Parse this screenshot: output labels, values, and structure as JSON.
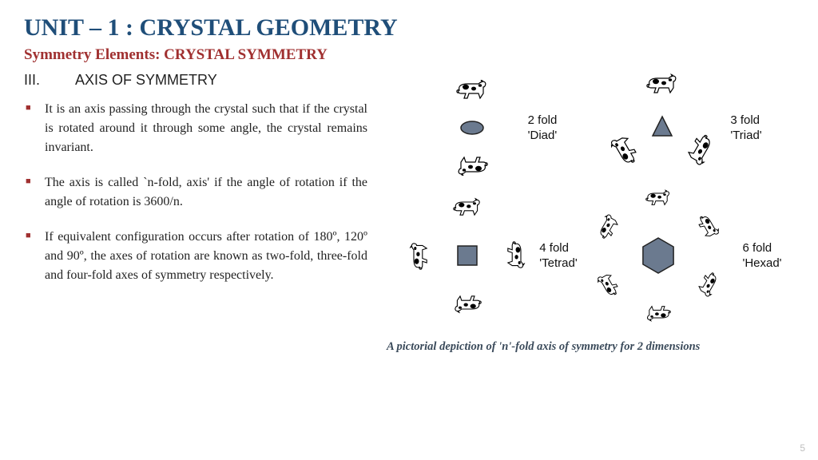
{
  "title": "UNIT – 1 : CRYSTAL GEOMETRY",
  "subtitle": "Symmetry Elements: CRYSTAL SYMMETRY",
  "section_roman": "III.",
  "section_name": "AXIS OF SYMMETRY",
  "bullets": [
    "It is an axis passing through the crystal such that if the crystal is rotated around it through some angle, the crystal remains invariant.",
    "The axis is called `n-fold, axis' if the angle of rotation if the angle of rotation is 3600/n.",
    "If equivalent configuration occurs after rotation of 180º, 120º and 90º, the axes of rotation are known as two-fold, three-fold and four-fold axes of symmetry respectively."
  ],
  "panels": {
    "diad": {
      "label1": "2 fold",
      "label2": "'Diad'",
      "n": 2,
      "radius": 45,
      "shape": "ellipse",
      "shape_fill": "#6b7a8f",
      "shape_stroke": "#222"
    },
    "triad": {
      "label1": "3 fold",
      "label2": "'Triad'",
      "n": 3,
      "radius": 52,
      "shape": "triangle",
      "shape_fill": "#6b7a8f",
      "shape_stroke": "#222"
    },
    "tetrad": {
      "label1": "4 fold",
      "label2": "'Tetrad'",
      "n": 4,
      "radius": 58,
      "shape": "square",
      "shape_fill": "#6b7a8f",
      "shape_stroke": "#222"
    },
    "hexad": {
      "label1": "6 fold",
      "label2": "'Hexad'",
      "n": 6,
      "radius": 70,
      "shape": "hexagon",
      "shape_fill": "#6b7a8f",
      "shape_stroke": "#222"
    }
  },
  "caption": "A pictorial depiction of 'n'-fold axis of symmetry for 2 dimensions",
  "page_number": "5",
  "colors": {
    "title": "#1f4e79",
    "subtitle": "#a03030",
    "bullet_marker": "#a03030",
    "text": "#222222",
    "caption": "#3a4a5a",
    "pagenum": "#bfbfbf",
    "bg": "#ffffff"
  },
  "fonts": {
    "title_family": "Georgia",
    "title_size_pt": 22,
    "subtitle_size_pt": 14,
    "body_size_pt": 12,
    "heading_family": "Arial"
  }
}
